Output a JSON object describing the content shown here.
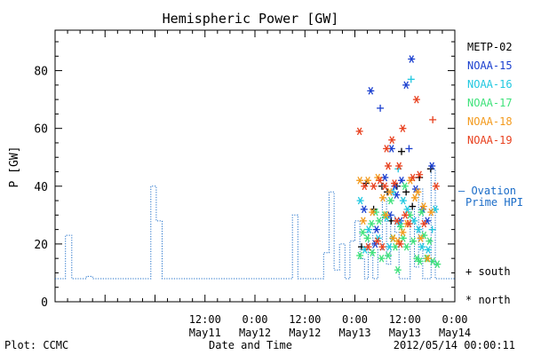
{
  "chart_data": {
    "type": "scatter",
    "title": "Hemispheric Power [GW]",
    "ylabel": "P [GW]",
    "xlabel": "Date and Time",
    "ylim": [
      0,
      94
    ],
    "yticks": [
      0,
      20,
      40,
      60,
      80
    ],
    "x_unit": "hours from 2012/05/10 00:00",
    "xlim": [
      0,
      96
    ],
    "xticks": [
      {
        "x": 36,
        "time": "12:00",
        "date": "May11"
      },
      {
        "x": 48,
        "time": "0:00",
        "date": "May12"
      },
      {
        "x": 60,
        "time": "12:00",
        "date": "May12"
      },
      {
        "x": 72,
        "time": "0:00",
        "date": "May13"
      },
      {
        "x": 84,
        "time": "12:00",
        "date": "May13"
      },
      {
        "x": 96,
        "time": "0:00",
        "date": "May14"
      }
    ],
    "legend": [
      {
        "name": "METP-02",
        "color": "#000000"
      },
      {
        "name": "NOAA-15",
        "color": "#1a3fcf"
      },
      {
        "name": "NOAA-16",
        "color": "#21c8e0"
      },
      {
        "name": "NOAA-17",
        "color": "#3ee27a"
      },
      {
        "name": "NOAA-18",
        "color": "#f39a1c"
      },
      {
        "name": "NOAA-19",
        "color": "#e8401e"
      }
    ],
    "ovation_label_1": "— Ovation",
    "ovation_label_2": "Prime HPI",
    "ovation_color": "#1a6cc8",
    "marker_south_label": "+ south",
    "marker_north_label": "* north",
    "ovation_series": [
      [
        0,
        8
      ],
      [
        2.5,
        8
      ],
      [
        2.5,
        23
      ],
      [
        4,
        23
      ],
      [
        4,
        8
      ],
      [
        7.5,
        8
      ],
      [
        7.5,
        8.8
      ],
      [
        9,
        8.8
      ],
      [
        9,
        8
      ],
      [
        23,
        8
      ],
      [
        23,
        40
      ],
      [
        24.3,
        40
      ],
      [
        24.3,
        28
      ],
      [
        25.7,
        28
      ],
      [
        25.7,
        8
      ],
      [
        45,
        8
      ],
      [
        45,
        8
      ],
      [
        57,
        8
      ],
      [
        57,
        30
      ],
      [
        58.3,
        30
      ],
      [
        58.3,
        8
      ],
      [
        64.5,
        8
      ],
      [
        64.5,
        17
      ],
      [
        65.8,
        17
      ],
      [
        65.8,
        38
      ],
      [
        67,
        38
      ],
      [
        67,
        11
      ],
      [
        68.3,
        11
      ],
      [
        68.3,
        20
      ],
      [
        69.6,
        20
      ],
      [
        69.6,
        8
      ],
      [
        70.8,
        8
      ],
      [
        70.8,
        21
      ],
      [
        72,
        21
      ],
      [
        72,
        28
      ],
      [
        73.2,
        28
      ],
      [
        73.2,
        15
      ],
      [
        74.3,
        15
      ],
      [
        74.3,
        8
      ],
      [
        75.2,
        8
      ],
      [
        75.2,
        24
      ],
      [
        76.3,
        24
      ],
      [
        76.3,
        8
      ],
      [
        77.5,
        8
      ],
      [
        77.5,
        18
      ],
      [
        78.6,
        18
      ],
      [
        78.6,
        36
      ],
      [
        79.6,
        36
      ],
      [
        79.6,
        13
      ],
      [
        80.6,
        13
      ],
      [
        80.6,
        30
      ],
      [
        81.6,
        30
      ],
      [
        81.6,
        24
      ],
      [
        82.6,
        24
      ],
      [
        82.6,
        8
      ],
      [
        85.3,
        8
      ],
      [
        85.3,
        33
      ],
      [
        86.3,
        33
      ],
      [
        86.3,
        12
      ],
      [
        87.3,
        12
      ],
      [
        87.3,
        39
      ],
      [
        88.3,
        39
      ],
      [
        88.3,
        8
      ],
      [
        90.3,
        8
      ],
      [
        90.3,
        46
      ],
      [
        91.3,
        46
      ],
      [
        91.3,
        8
      ],
      [
        96,
        8
      ]
    ],
    "series": [
      {
        "name": "METP-02",
        "color": "#000000",
        "points": [
          [
            73.6,
            19,
            "+"
          ],
          [
            74.7,
            41,
            "+"
          ],
          [
            76.5,
            32,
            "+"
          ],
          [
            78.5,
            40,
            "+"
          ],
          [
            79.8,
            38,
            "+"
          ],
          [
            80.7,
            28,
            "+"
          ],
          [
            82.1,
            40,
            "+"
          ],
          [
            83.2,
            52,
            "+"
          ],
          [
            84.3,
            38,
            "+"
          ],
          [
            85.8,
            33,
            "+"
          ],
          [
            87.5,
            43,
            "+"
          ],
          [
            90.2,
            46,
            "+"
          ]
        ]
      },
      {
        "name": "NOAA-15",
        "color": "#1a3fcf",
        "points": [
          [
            75.8,
            73,
            "*"
          ],
          [
            74.2,
            32,
            "*"
          ],
          [
            76.9,
            20,
            "*"
          ],
          [
            78.1,
            67,
            "+"
          ],
          [
            79.2,
            43,
            "*"
          ],
          [
            80.8,
            53,
            "*"
          ],
          [
            81.6,
            40,
            "*"
          ],
          [
            82.0,
            37,
            "*"
          ],
          [
            82.9,
            28,
            "*"
          ],
          [
            83.2,
            42,
            "*"
          ],
          [
            84.3,
            75,
            "*"
          ],
          [
            85.6,
            84,
            "*"
          ],
          [
            86.6,
            39,
            "*"
          ],
          [
            88.3,
            32,
            "*"
          ],
          [
            89.4,
            28,
            "*"
          ],
          [
            90.5,
            47,
            "*"
          ],
          [
            77.2,
            25,
            "*"
          ],
          [
            80.4,
            30,
            "*"
          ],
          [
            85.0,
            53,
            "+"
          ]
        ]
      },
      {
        "name": "NOAA-16",
        "color": "#21c8e0",
        "points": [
          [
            73.3,
            35,
            "*"
          ],
          [
            74.4,
            18,
            "*"
          ],
          [
            75.3,
            25,
            "*"
          ],
          [
            77.6,
            22,
            "*"
          ],
          [
            79.6,
            29,
            "*"
          ],
          [
            80.3,
            19,
            "*"
          ],
          [
            81.1,
            38,
            "*"
          ],
          [
            82.4,
            46,
            "+"
          ],
          [
            82.7,
            27,
            "*"
          ],
          [
            83.6,
            35,
            "*"
          ],
          [
            84.6,
            32,
            "*"
          ],
          [
            85.5,
            77,
            "+"
          ],
          [
            86.2,
            28,
            "*"
          ],
          [
            87.3,
            25,
            "*"
          ],
          [
            88.1,
            19,
            "*"
          ],
          [
            89.6,
            18,
            "*"
          ],
          [
            90.6,
            25,
            "+"
          ],
          [
            91.3,
            32,
            "*"
          ]
        ]
      },
      {
        "name": "NOAA-17",
        "color": "#3ee27a",
        "points": [
          [
            73.2,
            16,
            "*"
          ],
          [
            73.9,
            24,
            "*"
          ],
          [
            75.0,
            22,
            "*"
          ],
          [
            76.2,
            17,
            "*"
          ],
          [
            77.0,
            31,
            "*"
          ],
          [
            77.8,
            28,
            "*"
          ],
          [
            78.4,
            15,
            "*"
          ],
          [
            79.1,
            30,
            "*"
          ],
          [
            80.0,
            16,
            "*"
          ],
          [
            81.1,
            22,
            "*"
          ],
          [
            81.7,
            19,
            "*"
          ],
          [
            82.3,
            11,
            "*"
          ],
          [
            83.0,
            26,
            "*"
          ],
          [
            83.6,
            22,
            "*"
          ],
          [
            84.4,
            19,
            "*"
          ],
          [
            85.2,
            30,
            "*"
          ],
          [
            86.0,
            21,
            "*"
          ],
          [
            86.9,
            15,
            "*"
          ],
          [
            87.6,
            14,
            "*"
          ],
          [
            88.6,
            23,
            "*"
          ],
          [
            89.2,
            15,
            "*"
          ],
          [
            89.9,
            21,
            "*"
          ],
          [
            90.7,
            14,
            "*"
          ],
          [
            91.8,
            13,
            "*"
          ],
          [
            76.0,
            27,
            "*"
          ],
          [
            80.6,
            35,
            "*"
          ],
          [
            84.0,
            40,
            "*"
          ],
          [
            88.0,
            31,
            "*"
          ]
        ]
      },
      {
        "name": "NOAA-18",
        "color": "#f39a1c",
        "points": [
          [
            73.2,
            42,
            "*"
          ],
          [
            74.0,
            28,
            "*"
          ],
          [
            75.1,
            42,
            "*"
          ],
          [
            76.2,
            31,
            "*"
          ],
          [
            77.5,
            43,
            "*"
          ],
          [
            78.7,
            36,
            "*"
          ],
          [
            79.5,
            30,
            "*"
          ],
          [
            80.4,
            38,
            "*"
          ],
          [
            81.2,
            22,
            "*"
          ],
          [
            82.3,
            21,
            "*"
          ],
          [
            83.5,
            24,
            "*"
          ],
          [
            84.5,
            27,
            "*"
          ],
          [
            85.3,
            42,
            "*"
          ],
          [
            86.4,
            36,
            "*"
          ],
          [
            87.1,
            38,
            "*"
          ],
          [
            87.8,
            22,
            "*"
          ],
          [
            88.5,
            33,
            "*"
          ],
          [
            89.5,
            15,
            "*"
          ],
          [
            90.3,
            31,
            "*"
          ]
        ]
      },
      {
        "name": "NOAA-19",
        "color": "#e8401e",
        "points": [
          [
            73.1,
            59,
            "*"
          ],
          [
            74.3,
            40,
            "*"
          ],
          [
            75.2,
            19,
            "*"
          ],
          [
            76.5,
            40,
            "*"
          ],
          [
            77.4,
            21,
            "*"
          ],
          [
            78.0,
            42,
            "*"
          ],
          [
            78.6,
            19,
            "*"
          ],
          [
            79.2,
            40,
            "*"
          ],
          [
            80.0,
            47,
            "*"
          ],
          [
            80.9,
            56,
            "*"
          ],
          [
            81.5,
            41,
            "*"
          ],
          [
            82.1,
            28,
            "*"
          ],
          [
            82.6,
            47,
            "*"
          ],
          [
            83.5,
            60,
            "*"
          ],
          [
            84.1,
            30,
            "*"
          ],
          [
            85.0,
            27,
            "*"
          ],
          [
            85.9,
            43,
            "*"
          ],
          [
            86.8,
            70,
            "*"
          ],
          [
            87.5,
            44,
            "*"
          ],
          [
            88.6,
            27,
            "*"
          ],
          [
            90.7,
            63,
            "+"
          ],
          [
            91.5,
            40,
            "*"
          ],
          [
            79.6,
            53,
            "*"
          ],
          [
            82.9,
            20,
            "*"
          ]
        ]
      }
    ]
  },
  "footer": {
    "plot_label": "Plot: CCMC",
    "timestamp": "2012/05/14 00:00:11"
  }
}
